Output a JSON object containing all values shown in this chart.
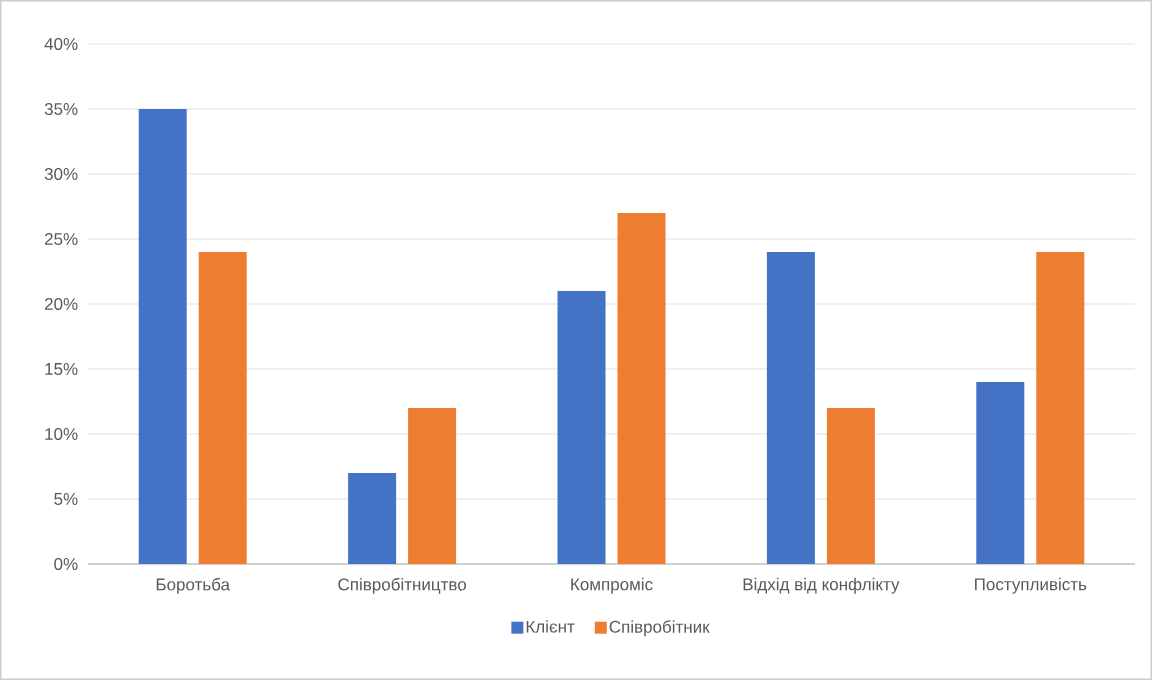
{
  "chart_data": {
    "type": "bar",
    "categories": [
      "Боротьба",
      "Співробітництво",
      "Компроміс",
      "Відхід від конфлікту",
      "Поступливість"
    ],
    "series": [
      {
        "name": "Клієнт",
        "color": "#4472c4",
        "values": [
          35,
          7,
          21,
          24,
          14
        ]
      },
      {
        "name": "Співробітник",
        "color": "#ed7d31",
        "values": [
          24,
          12,
          27,
          12,
          24
        ]
      }
    ],
    "ylim": [
      0,
      40
    ],
    "yticks": [
      {
        "value": 0,
        "label": "0%"
      },
      {
        "value": 5,
        "label": "5%"
      },
      {
        "value": 10,
        "label": "10%"
      },
      {
        "value": 15,
        "label": "15%"
      },
      {
        "value": 20,
        "label": "20%"
      },
      {
        "value": 25,
        "label": "25%"
      },
      {
        "value": 30,
        "label": "30%"
      },
      {
        "value": 35,
        "label": "35%"
      },
      {
        "value": 40,
        "label": "40%"
      }
    ],
    "grid": "y",
    "legend": "bottom"
  }
}
